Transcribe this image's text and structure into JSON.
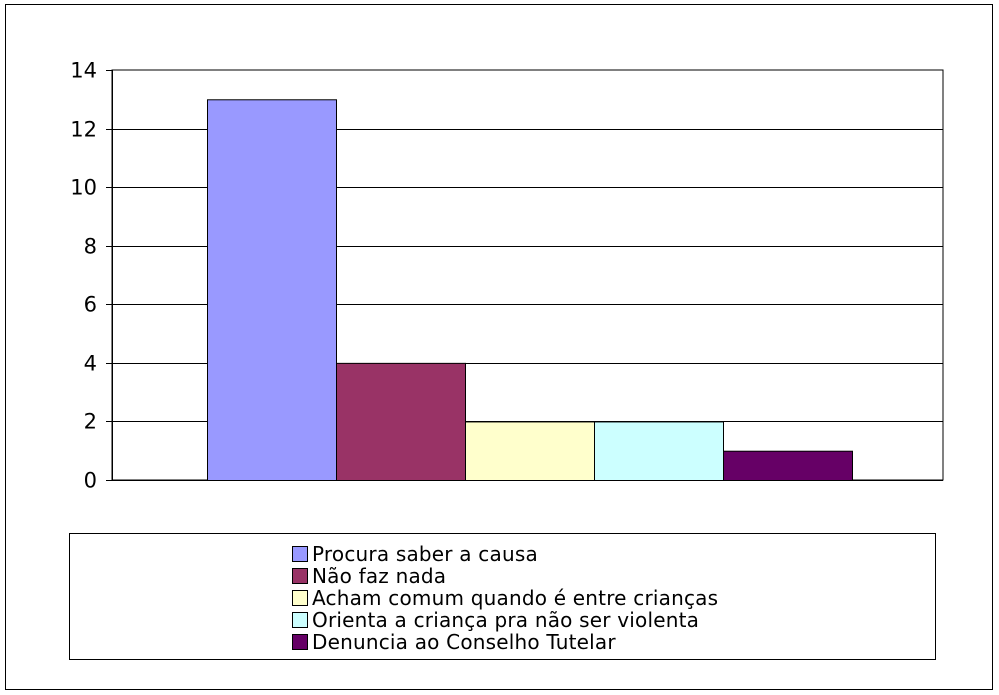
{
  "chart_data": {
    "type": "bar",
    "title": "",
    "xlabel": "",
    "ylabel": "",
    "ylim": [
      0,
      14
    ],
    "yticks": [
      "0",
      "2",
      "4",
      "6",
      "8",
      "10",
      "12",
      "14"
    ],
    "grid": true,
    "legend_position": "bottom",
    "series": [
      {
        "name": "Procura saber a causa",
        "values": [
          13
        ],
        "color": "#9999ff"
      },
      {
        "name": "Não faz nada",
        "values": [
          4
        ],
        "color": "#993366"
      },
      {
        "name": "Acham comum quando é entre crianças",
        "values": [
          2
        ],
        "color": "#ffffcc"
      },
      {
        "name": "Orienta a criança pra não ser violenta",
        "values": [
          2
        ],
        "color": "#ccffff"
      },
      {
        "name": "Denuncia ao Conselho Tutelar",
        "values": [
          1
        ],
        "color": "#660066"
      }
    ]
  }
}
